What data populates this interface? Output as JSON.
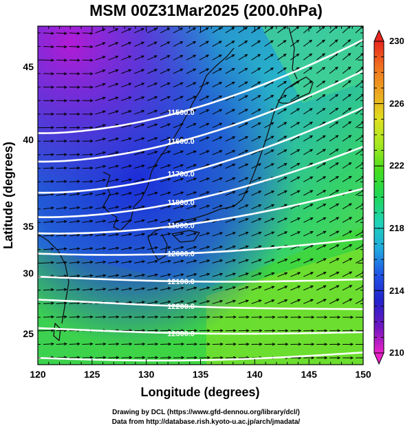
{
  "title": "MSM 00Z31Mar2025 (200.0hPa)",
  "x_axis": {
    "label": "Longitude (degrees)",
    "ticks": [
      "120",
      "125",
      "130",
      "135",
      "140",
      "145",
      "150"
    ],
    "range": [
      120,
      150
    ]
  },
  "y_axis": {
    "label": "Latitude  (degrees)",
    "ticks": [
      "25",
      "30",
      "35",
      "40",
      "45"
    ],
    "range": [
      22.5,
      47.5
    ]
  },
  "colorbar": {
    "ticks": [
      "210",
      "214",
      "218",
      "222",
      "226",
      "230"
    ],
    "range": [
      210,
      230
    ]
  },
  "contours": [
    {
      "value": 11500,
      "label": "11500.0",
      "lat_west": 39.6,
      "lat_east": 46.5
    },
    {
      "value": 11600,
      "label": "11600.0",
      "lat_west": 37.5,
      "lat_east": 44.2
    },
    {
      "value": 11700,
      "label": "11700.0",
      "lat_west": 35.2,
      "lat_east": 41.5
    },
    {
      "value": 11800,
      "label": "11800.0",
      "lat_west": 33.4,
      "lat_east": 38.6
    },
    {
      "value": 11900,
      "label": "11900.0",
      "lat_west": 32.2,
      "lat_east": 35.5
    },
    {
      "value": 12000,
      "label": "12000.0",
      "lat_west": 30.7,
      "lat_east": 31.8
    },
    {
      "value": 12100,
      "label": "12100.0",
      "lat_west": 29.0,
      "lat_east": 28.8
    },
    {
      "value": 12200,
      "label": "12200.0",
      "lat_west": 27.3,
      "lat_east": 26.6
    },
    {
      "value": 12300,
      "label": "12300.0",
      "lat_west": 25.2,
      "lat_east": 24.9
    },
    {
      "value": 12400,
      "label": "",
      "lat_west": 23.0,
      "lat_east": 23.4
    }
  ],
  "colors": {
    "colorbar_stops": [
      "#ea21c9",
      "#7016bf",
      "#2222cc",
      "#1f52e6",
      "#20a8e0",
      "#1fd3b8",
      "#1fd65a",
      "#43dd1f",
      "#a4e81f",
      "#e0df1f",
      "#eda71f",
      "#f0721f",
      "#e8261f"
    ]
  },
  "credits": {
    "line1": "Drawing by DCL (https://www.gfd-dennou.org/library/dcl/)",
    "line2": "Data from http://database.rish.kyoto-u.ac.jp/arch/jmadata/"
  }
}
